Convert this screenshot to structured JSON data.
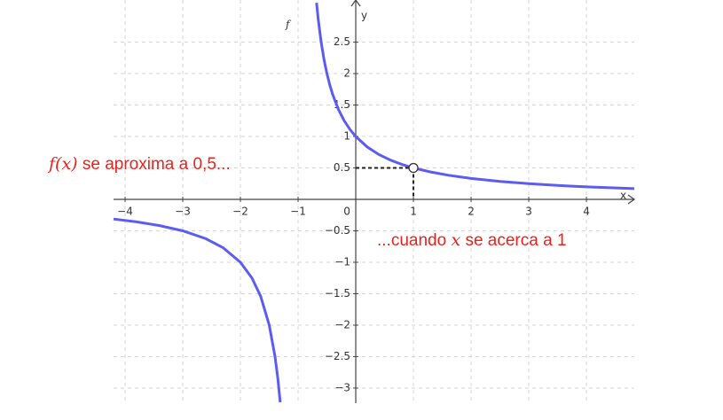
{
  "chart_data": {
    "type": "line",
    "x_label": "x",
    "y_label": "y",
    "function_label": "f",
    "x": [
      -4.2,
      -3.8,
      -3.4,
      -3,
      -2.6,
      -2.3,
      -2,
      -1.8,
      -1.65,
      -1.5,
      -1.4,
      -1.35,
      -1.31,
      -1,
      -0.68,
      -0.65,
      -0.6,
      -0.55,
      -0.5,
      -0.45,
      -0.4,
      -0.3,
      -0.2,
      -0.1,
      0,
      0.2,
      0.4,
      0.6,
      0.8,
      1,
      1.3,
      1.6,
      2,
      2.5,
      3,
      3.5,
      4,
      4.83
    ],
    "series": [
      {
        "color": "#5c5cf0",
        "values": [
          -0.3125,
          -0.357,
          -0.417,
          -0.5,
          -0.625,
          -0.769,
          -1,
          -1.25,
          -1.538,
          -2,
          -2.5,
          -2.857,
          -3.226,
          null,
          3.125,
          2.857,
          2.5,
          2.222,
          2,
          1.818,
          1.667,
          1.429,
          1.25,
          1.111,
          1,
          0.833,
          0.714,
          0.625,
          0.556,
          0.5,
          0.435,
          0.385,
          0.333,
          0.286,
          0.25,
          0.222,
          0.2,
          0.171
        ]
      }
    ],
    "hole": {
      "x": 1,
      "y": 0.5
    },
    "xlim": [
      -4.2,
      4.83
    ],
    "ylim": [
      -3.24,
      3.17
    ],
    "xticks": [
      {
        "value": -4,
        "label": "−4"
      },
      {
        "value": -3,
        "label": "−3"
      },
      {
        "value": -2,
        "label": "−2"
      },
      {
        "value": -1,
        "label": "−1"
      },
      0,
      1,
      2,
      3,
      4
    ],
    "yticks": [
      {
        "value": -3,
        "label": "−3"
      },
      {
        "value": -2.5,
        "label": "−2.5"
      },
      {
        "value": -2,
        "label": "−2"
      },
      {
        "value": -1.5,
        "label": "−1.5"
      },
      {
        "value": -1,
        "label": "−1"
      },
      {
        "value": -0.5,
        "label": "−0.5"
      },
      0.5,
      1,
      1.5,
      2,
      2.5
    ],
    "grid": true,
    "annotations": [
      {
        "color": "#e8231e",
        "parts": [
          {
            "text": "f(x)",
            "italic": true
          },
          {
            "text": " se aproxima a 0,5..."
          }
        ]
      },
      {
        "color": "#e8231e",
        "parts": [
          {
            "text": "...cuando "
          },
          {
            "text": "x",
            "italic": true
          },
          {
            "text": " se acerca a 1"
          }
        ]
      }
    ]
  }
}
